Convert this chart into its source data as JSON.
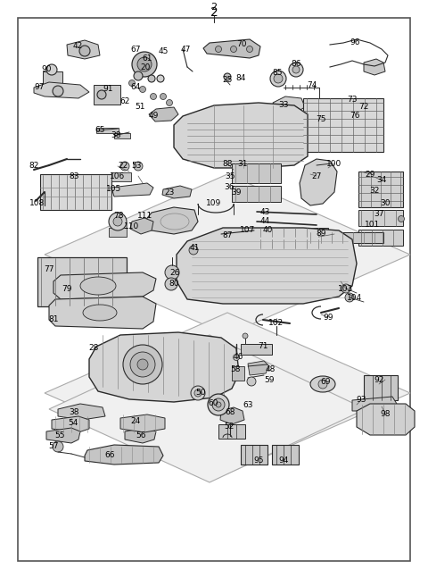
{
  "fig_width": 4.8,
  "fig_height": 6.56,
  "dpi": 100,
  "bg": "#ffffff",
  "lc": "#2a2a2a",
  "title": "2",
  "border": [
    20,
    20,
    460,
    628
  ],
  "labels": [
    [
      "2",
      240,
      8,
      8
    ],
    [
      "42",
      87,
      52,
      6.5
    ],
    [
      "67",
      152,
      55,
      6.5
    ],
    [
      "61",
      165,
      65,
      6.5
    ],
    [
      "45",
      183,
      58,
      6.5
    ],
    [
      "47",
      208,
      55,
      6.5
    ],
    [
      "70",
      271,
      50,
      6.5
    ],
    [
      "96",
      398,
      48,
      6.5
    ],
    [
      "90",
      52,
      78,
      6.5
    ],
    [
      "20",
      163,
      75,
      6.5
    ],
    [
      "85",
      311,
      82,
      6.5
    ],
    [
      "86",
      332,
      72,
      6.5
    ],
    [
      "97",
      44,
      98,
      6.5
    ],
    [
      "91",
      121,
      100,
      6.5
    ],
    [
      "64",
      152,
      98,
      6.5
    ],
    [
      "25",
      255,
      90,
      6.5
    ],
    [
      "84",
      270,
      87,
      6.5
    ],
    [
      "74",
      350,
      95,
      6.5
    ],
    [
      "62",
      140,
      113,
      6.5
    ],
    [
      "51",
      157,
      120,
      6.5
    ],
    [
      "49",
      172,
      130,
      6.5
    ],
    [
      "33",
      318,
      117,
      6.5
    ],
    [
      "73",
      395,
      112,
      6.5
    ],
    [
      "72",
      408,
      120,
      6.5
    ],
    [
      "65",
      112,
      145,
      6.5
    ],
    [
      "38",
      130,
      152,
      6.5
    ],
    [
      "75",
      360,
      133,
      6.5
    ],
    [
      "76",
      398,
      130,
      6.5
    ],
    [
      "82",
      38,
      185,
      6.5
    ],
    [
      "22",
      138,
      186,
      6.5
    ],
    [
      "53",
      153,
      186,
      6.5
    ],
    [
      "88",
      255,
      183,
      6.5
    ],
    [
      "31",
      272,
      183,
      6.5
    ],
    [
      "100",
      375,
      183,
      6.5
    ],
    [
      "106",
      132,
      197,
      6.5
    ],
    [
      "35",
      258,
      198,
      6.5
    ],
    [
      "27",
      355,
      197,
      6.5
    ],
    [
      "83",
      83,
      197,
      6.5
    ],
    [
      "29",
      415,
      195,
      6.5
    ],
    [
      "34",
      428,
      202,
      6.5
    ],
    [
      "36",
      257,
      210,
      6.5
    ],
    [
      "105",
      128,
      212,
      6.5
    ],
    [
      "23",
      190,
      215,
      6.5
    ],
    [
      "39",
      265,
      215,
      6.5
    ],
    [
      "32",
      420,
      213,
      6.5
    ],
    [
      "108",
      42,
      228,
      6.5
    ],
    [
      "109",
      240,
      228,
      6.5
    ],
    [
      "30",
      432,
      227,
      6.5
    ],
    [
      "78",
      133,
      241,
      6.5
    ],
    [
      "111",
      163,
      242,
      6.5
    ],
    [
      "43",
      297,
      238,
      6.5
    ],
    [
      "44",
      297,
      248,
      6.5
    ],
    [
      "37",
      425,
      240,
      6.5
    ],
    [
      "110",
      148,
      253,
      6.5
    ],
    [
      "101",
      418,
      252,
      6.5
    ],
    [
      "107",
      278,
      257,
      6.5
    ],
    [
      "40",
      300,
      258,
      6.5
    ],
    [
      "87",
      255,
      263,
      6.5
    ],
    [
      "89",
      360,
      262,
      6.5
    ],
    [
      "41",
      218,
      278,
      6.5
    ],
    [
      "77",
      55,
      302,
      6.5
    ],
    [
      "26",
      196,
      305,
      6.5
    ],
    [
      "80",
      195,
      317,
      6.5
    ],
    [
      "79",
      75,
      323,
      6.5
    ],
    [
      "103",
      388,
      323,
      6.5
    ],
    [
      "104",
      398,
      333,
      6.5
    ],
    [
      "81",
      60,
      358,
      6.5
    ],
    [
      "102",
      310,
      362,
      6.5
    ],
    [
      "99",
      368,
      355,
      6.5
    ],
    [
      "28",
      105,
      390,
      6.5
    ],
    [
      "71",
      295,
      388,
      6.5
    ],
    [
      "46",
      267,
      400,
      6.5
    ],
    [
      "58",
      264,
      413,
      6.5
    ],
    [
      "48",
      303,
      413,
      6.5
    ],
    [
      "59",
      302,
      425,
      6.5
    ],
    [
      "69",
      365,
      427,
      6.5
    ],
    [
      "92",
      425,
      425,
      6.5
    ],
    [
      "50",
      225,
      440,
      6.5
    ],
    [
      "60",
      239,
      452,
      6.5
    ],
    [
      "63",
      278,
      453,
      6.5
    ],
    [
      "93",
      405,
      448,
      6.5
    ],
    [
      "38",
      83,
      462,
      6.5
    ],
    [
      "54",
      82,
      473,
      6.5
    ],
    [
      "68",
      258,
      462,
      6.5
    ],
    [
      "52",
      257,
      477,
      6.5
    ],
    [
      "24",
      152,
      472,
      6.5
    ],
    [
      "98",
      432,
      463,
      6.5
    ],
    [
      "55",
      67,
      487,
      6.5
    ],
    [
      "56",
      158,
      487,
      6.5
    ],
    [
      "57",
      60,
      500,
      6.5
    ],
    [
      "66",
      123,
      510,
      6.5
    ],
    [
      "95",
      290,
      515,
      6.5
    ],
    [
      "94",
      318,
      515,
      6.5
    ]
  ]
}
